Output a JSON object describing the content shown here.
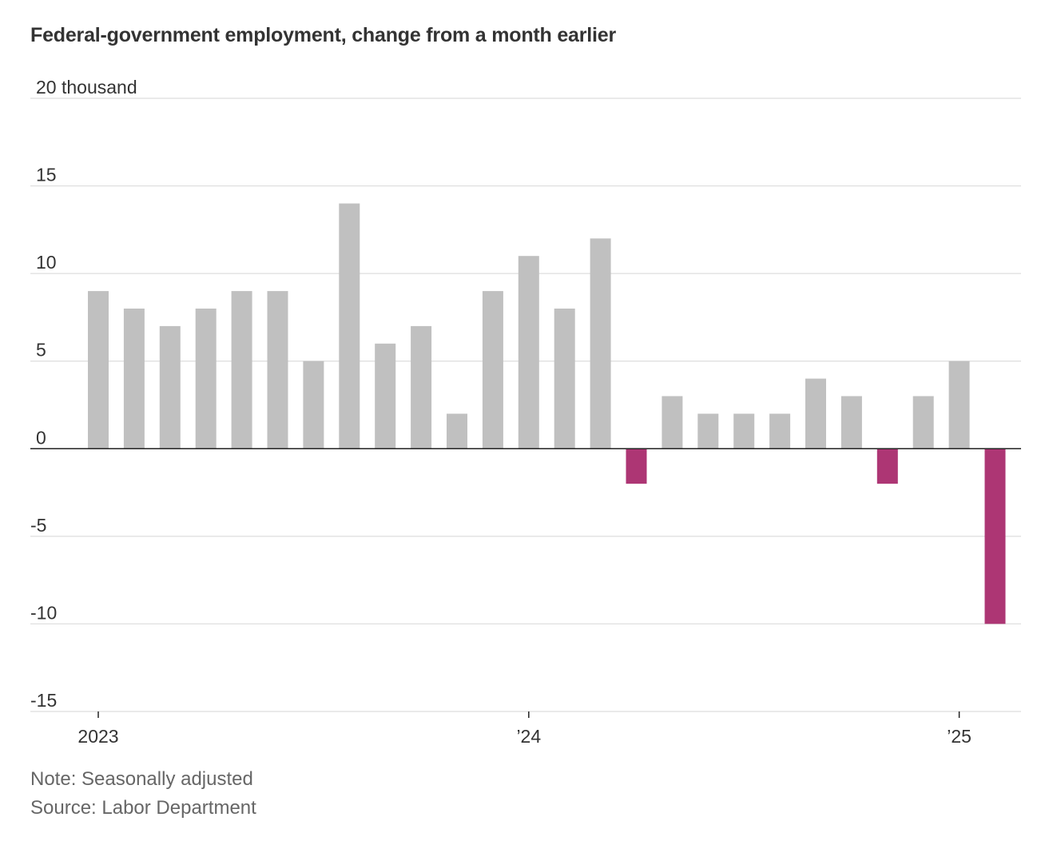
{
  "title": "Federal-government employment, change from a month earlier",
  "note": "Note: Seasonally adjusted",
  "source": "Source: Labor Department",
  "colors": {
    "positive": "#c0c0c0",
    "negative": "#ad3674",
    "grid": "#dddddd",
    "zero_line": "#222222",
    "tick_text": "#333333"
  },
  "chart_data": {
    "type": "bar",
    "title": "Federal-government employment, change from a month earlier",
    "xlabel": "",
    "ylabel": "thousand",
    "unit_label": "20 thousand",
    "ylim": [
      -15,
      20
    ],
    "yticks": [
      20,
      15,
      10,
      5,
      0,
      -5,
      -10,
      -15
    ],
    "ytick_labels": [
      "20 thousand",
      "15",
      "10",
      "5",
      "0",
      "-5",
      "-10",
      "-15"
    ],
    "grid": true,
    "x_tick_labels": [
      {
        "label": "2023",
        "index": 0
      },
      {
        "label": "’24",
        "index": 12
      },
      {
        "label": "’25",
        "index": 24
      }
    ],
    "categories": [
      "Jan 2023",
      "Feb 2023",
      "Mar 2023",
      "Apr 2023",
      "May 2023",
      "Jun 2023",
      "Jul 2023",
      "Aug 2023",
      "Sep 2023",
      "Oct 2023",
      "Nov 2023",
      "Dec 2023",
      "Jan 2024",
      "Feb 2024",
      "Mar 2024",
      "Apr 2024",
      "May 2024",
      "Jun 2024",
      "Jul 2024",
      "Aug 2024",
      "Sep 2024",
      "Oct 2024",
      "Nov 2024",
      "Dec 2024",
      "Jan 2025",
      "Feb 2025"
    ],
    "values": [
      9,
      8,
      7,
      8,
      9,
      9,
      5,
      14,
      6,
      7,
      2,
      9,
      11,
      8,
      12,
      -2,
      3,
      2,
      2,
      2,
      4,
      3,
      -2,
      3,
      5,
      -10
    ]
  }
}
